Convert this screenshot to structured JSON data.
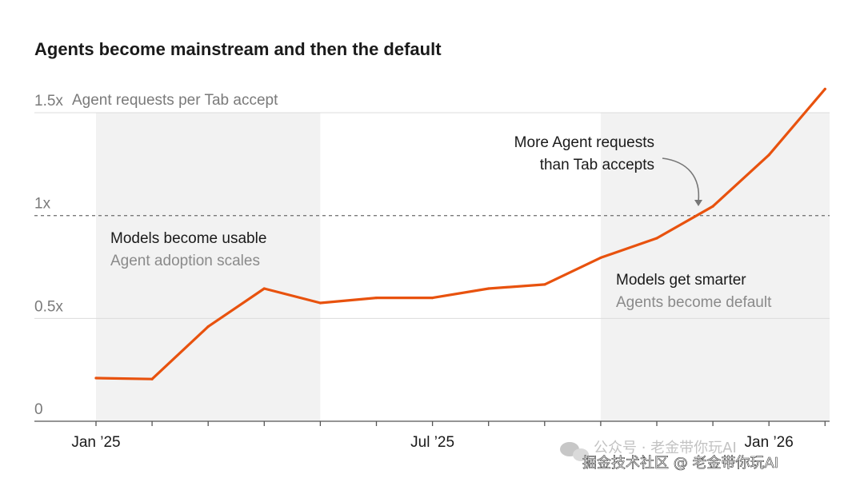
{
  "chart_data": {
    "type": "line",
    "title": "Agents become mainstream and then the default",
    "ylabel": "Agent requests per Tab accept",
    "ylim": [
      0,
      1.5
    ],
    "y_ticks": [
      {
        "value": 0,
        "label": "0"
      },
      {
        "value": 0.5,
        "label": "0.5x"
      },
      {
        "value": 1,
        "label": "1x"
      },
      {
        "value": 1.5,
        "label": "1.5x"
      }
    ],
    "x_ticks": [
      {
        "index": 0,
        "label": "Jan ’25"
      },
      {
        "index": 6,
        "label": "Jul ’25"
      },
      {
        "index": 12,
        "label": "Jan ’26"
      }
    ],
    "x_count": 14,
    "values": [
      0.21,
      0.205,
      0.46,
      0.645,
      0.575,
      0.6,
      0.6,
      0.645,
      0.665,
      0.795,
      0.89,
      1.045,
      1.295,
      1.615
    ],
    "reference_line": {
      "value": 1,
      "style": "dashed"
    },
    "shaded_regions": [
      {
        "from": 0,
        "to": 4,
        "label_main": "Models become usable",
        "label_sub": "Agent adoption scales"
      },
      {
        "from": 9,
        "to": 13.2,
        "label_main": "Models get smarter",
        "label_sub": "Agents become default"
      }
    ],
    "annotation": {
      "lines": [
        "More Agent requests",
        "than Tab accepts"
      ]
    },
    "colors": {
      "line": "#e8520e",
      "shade": "#f2f2f2",
      "grid": "#dcdcdc",
      "reference": "#7a7a7a"
    }
  },
  "watermark": {
    "line1": "公众号 · 老金带你玩AI",
    "line2": "掘金技术社区 @ 老金带你玩AI",
    "icon": "wechat-icon"
  }
}
